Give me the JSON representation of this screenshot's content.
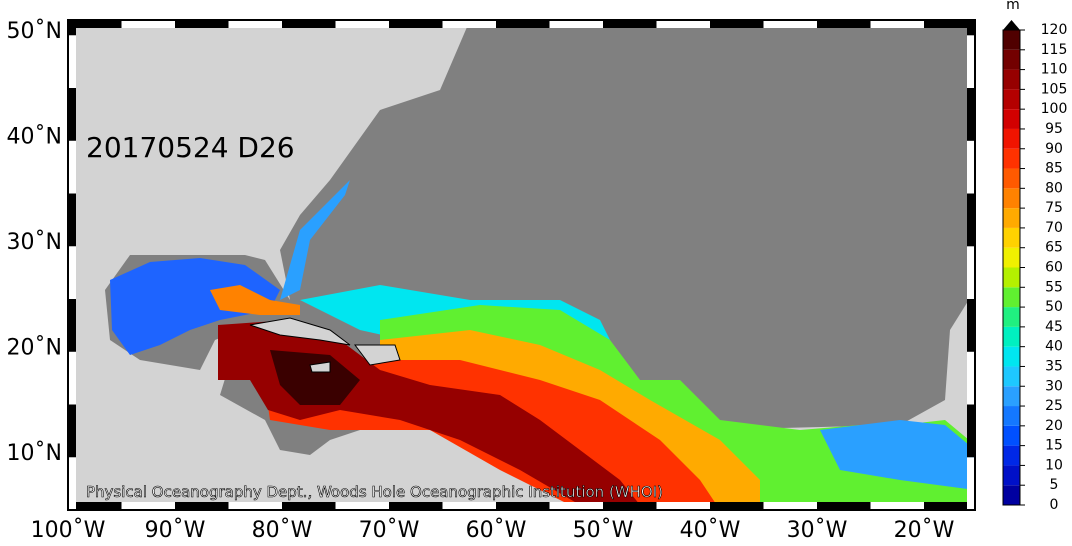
{
  "map": {
    "date_label": "20170524 D26",
    "credit": "Physical Oceanography Dept., Woods Hole Oceanographic Institution (WHOI)",
    "lat_labels": [
      "50˚N",
      "40˚N",
      "30˚N",
      "20˚N",
      "10˚N"
    ],
    "lon_labels": [
      "100˚W",
      "90˚W",
      "80˚W",
      "70˚W",
      "60˚W",
      "50˚W",
      "40˚W",
      "30˚W",
      "20˚W"
    ]
  },
  "colorbar": {
    "unit": "m",
    "ticks": [
      0,
      5,
      10,
      15,
      20,
      25,
      30,
      35,
      40,
      45,
      50,
      55,
      60,
      65,
      70,
      75,
      80,
      85,
      90,
      95,
      100,
      105,
      110,
      115,
      120
    ],
    "colors": [
      "#0000a0",
      "#0010c8",
      "#0028e6",
      "#0050ff",
      "#1478ff",
      "#2aa0ff",
      "#1ec8ff",
      "#00e6f0",
      "#00f0c0",
      "#20f080",
      "#60f030",
      "#b4f000",
      "#f0f000",
      "#ffd200",
      "#ffaa00",
      "#ff8200",
      "#ff5a00",
      "#ff3200",
      "#f01400",
      "#d20000",
      "#b40000",
      "#960000",
      "#730000",
      "#500000"
    ]
  }
}
